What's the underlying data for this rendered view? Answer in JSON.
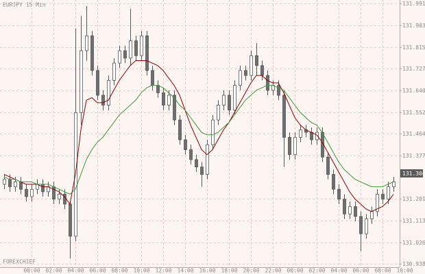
{
  "chart_data": {
    "type": "candlestick",
    "title": "EURJPY 15 Min",
    "watermark": "FOREXCHIEF",
    "grid": true,
    "up_color": "#ffffff",
    "down_color": "#6e6e6e",
    "wick_color": "#555555",
    "x": [
      -2.5,
      -2,
      -1.5,
      -1,
      -0.5,
      0,
      0.5,
      1,
      1.5,
      2,
      2.5,
      3,
      3.5,
      4,
      4.5,
      5,
      5.5,
      6,
      6.5,
      7,
      7.5,
      8,
      8.5,
      9,
      9.5,
      10,
      10.5,
      11,
      11.5,
      12,
      12.5,
      13,
      13.5,
      14,
      14.5,
      15,
      15.5,
      16,
      16.5,
      17,
      17.5,
      18,
      18.5,
      19,
      19.5,
      20,
      20.5,
      21,
      21.5,
      22,
      22.5,
      23,
      23.5,
      24,
      24.5,
      25,
      25.5,
      26,
      26.5,
      27,
      27.5,
      28,
      28.5,
      29,
      29.5,
      30,
      30.5,
      31,
      31.5,
      32,
      32.5,
      33
    ],
    "open": [
      131.26,
      131.28,
      131.25,
      131.27,
      131.24,
      131.21,
      131.24,
      131.26,
      131.23,
      131.25,
      131.2,
      131.22,
      131.18,
      131.05,
      131.55,
      131.8,
      131.86,
      131.72,
      131.62,
      131.58,
      131.68,
      131.75,
      131.8,
      131.77,
      131.84,
      131.78,
      131.86,
      131.72,
      131.66,
      131.63,
      131.58,
      131.62,
      131.52,
      131.44,
      131.4,
      131.36,
      131.33,
      131.3,
      131.42,
      131.52,
      131.58,
      131.62,
      131.56,
      131.66,
      131.72,
      131.7,
      131.78,
      131.74,
      131.7,
      131.64,
      131.66,
      131.62,
      131.45,
      131.38,
      131.45,
      131.48,
      131.47,
      131.44,
      131.47,
      131.37,
      131.3,
      131.24,
      131.2,
      131.14,
      131.17,
      131.13,
      131.06,
      131.12,
      131.15,
      131.22,
      131.2,
      131.25
    ],
    "high": [
      131.3,
      131.3,
      131.29,
      131.29,
      131.26,
      131.26,
      131.28,
      131.28,
      131.27,
      131.27,
      131.24,
      131.24,
      131.19,
      131.89,
      131.94,
      131.98,
      131.88,
      131.74,
      131.64,
      131.7,
      131.77,
      131.82,
      131.82,
      131.97,
      131.86,
      131.88,
      131.88,
      131.74,
      131.68,
      131.65,
      131.64,
      131.64,
      131.54,
      131.46,
      131.42,
      131.38,
      131.35,
      131.44,
      131.54,
      131.6,
      131.64,
      131.64,
      131.68,
      131.74,
      131.74,
      131.8,
      131.83,
      131.76,
      131.72,
      131.68,
      131.68,
      131.64,
      131.47,
      131.47,
      131.5,
      131.5,
      131.49,
      131.49,
      131.49,
      131.39,
      131.32,
      131.26,
      131.22,
      131.19,
      131.19,
      131.15,
      131.14,
      131.17,
      131.24,
      131.24,
      131.27,
      131.29
    ],
    "low": [
      131.24,
      131.23,
      131.23,
      131.22,
      131.19,
      131.19,
      131.22,
      131.21,
      131.21,
      131.18,
      131.18,
      131.16,
      130.96,
      131.03,
      131.5,
      131.76,
      131.7,
      131.6,
      131.56,
      131.56,
      131.66,
      131.73,
      131.75,
      131.74,
      131.76,
      131.76,
      131.7,
      131.64,
      131.61,
      131.56,
      131.56,
      131.5,
      131.42,
      131.38,
      131.34,
      131.31,
      131.25,
      131.28,
      131.4,
      131.5,
      131.56,
      131.54,
      131.54,
      131.64,
      131.68,
      131.68,
      131.7,
      131.68,
      131.62,
      131.62,
      131.6,
      131.33,
      131.36,
      131.36,
      131.43,
      131.45,
      131.42,
      131.42,
      131.35,
      131.28,
      131.22,
      131.18,
      131.12,
      131.12,
      131.11,
      130.99,
      131.04,
      131.1,
      131.13,
      131.18,
      131.18,
      131.23
    ],
    "close": [
      131.28,
      131.25,
      131.27,
      131.24,
      131.21,
      131.24,
      131.26,
      131.23,
      131.25,
      131.2,
      131.22,
      131.18,
      131.05,
      131.55,
      131.8,
      131.86,
      131.72,
      131.62,
      131.58,
      131.68,
      131.75,
      131.8,
      131.77,
      131.84,
      131.78,
      131.86,
      131.72,
      131.66,
      131.63,
      131.58,
      131.62,
      131.52,
      131.44,
      131.4,
      131.36,
      131.33,
      131.3,
      131.42,
      131.52,
      131.58,
      131.62,
      131.56,
      131.66,
      131.72,
      131.7,
      131.78,
      131.74,
      131.7,
      131.64,
      131.66,
      131.62,
      131.45,
      131.38,
      131.45,
      131.48,
      131.47,
      131.44,
      131.47,
      131.37,
      131.3,
      131.24,
      131.2,
      131.14,
      131.17,
      131.13,
      131.06,
      131.12,
      131.15,
      131.22,
      131.2,
      131.25,
      131.27
    ],
    "overlays": [
      {
        "color": "#8b0000",
        "values": [
          131.3,
          131.29,
          131.28,
          131.27,
          131.26,
          131.26,
          131.26,
          131.25,
          131.25,
          131.24,
          131.23,
          131.21,
          131.18,
          131.3,
          131.48,
          131.6,
          131.61,
          131.59,
          131.59,
          131.6,
          131.64,
          131.68,
          131.71,
          131.74,
          131.76,
          131.76,
          131.76,
          131.75,
          131.74,
          131.72,
          131.69,
          131.66,
          131.62,
          131.56,
          131.5,
          131.45,
          131.4,
          131.38,
          131.4,
          131.44,
          131.48,
          131.51,
          131.55,
          131.59,
          131.63,
          131.67,
          131.7,
          131.7,
          131.68,
          131.67,
          131.67,
          131.63,
          131.58,
          131.53,
          131.5,
          131.48,
          131.47,
          131.46,
          131.43,
          131.39,
          131.35,
          131.31,
          131.27,
          131.23,
          131.2,
          131.18,
          131.16,
          131.15,
          131.16,
          131.17,
          131.19,
          131.22
        ]
      },
      {
        "color": "#3a9a3a",
        "values": [
          131.29,
          131.28,
          131.28,
          131.27,
          131.27,
          131.27,
          131.26,
          131.26,
          131.26,
          131.25,
          131.24,
          131.23,
          131.22,
          131.24,
          131.3,
          131.36,
          131.4,
          131.43,
          131.45,
          131.48,
          131.51,
          131.54,
          131.56,
          131.58,
          131.6,
          131.63,
          131.65,
          131.66,
          131.66,
          131.65,
          131.63,
          131.61,
          131.58,
          131.56,
          131.53,
          131.5,
          131.47,
          131.46,
          131.46,
          131.47,
          131.49,
          131.51,
          131.54,
          131.57,
          131.6,
          131.62,
          131.64,
          131.65,
          131.66,
          131.66,
          131.65,
          131.64,
          131.61,
          131.58,
          131.55,
          131.53,
          131.51,
          131.5,
          131.47,
          131.43,
          131.39,
          131.35,
          131.32,
          131.3,
          131.28,
          131.27,
          131.26,
          131.25,
          131.25,
          131.25,
          131.26,
          131.27
        ]
      }
    ],
    "current_price": 131.304,
    "xlim": [
      -2.875,
      34.25
    ],
    "xticks": [
      {
        "value": 0,
        "label": "00:00"
      },
      {
        "value": 2,
        "label": "02:00"
      },
      {
        "value": 4,
        "label": "04:00"
      },
      {
        "value": 6,
        "label": "06:00"
      },
      {
        "value": 8,
        "label": "08:00"
      },
      {
        "value": 10,
        "label": "10:00"
      },
      {
        "value": 12,
        "label": "12:00"
      },
      {
        "value": 14,
        "label": "14:00"
      },
      {
        "value": 16,
        "label": "16:00"
      },
      {
        "value": 18,
        "label": "18:00"
      },
      {
        "value": 20,
        "label": "20:00"
      },
      {
        "value": 22,
        "label": "22:00"
      },
      {
        "value": 24,
        "label": "00:00"
      },
      {
        "value": 26,
        "label": "02:00"
      },
      {
        "value": 28,
        "label": "04:00"
      },
      {
        "value": 30,
        "label": "06:00"
      },
      {
        "value": 32,
        "label": "08:00"
      },
      {
        "value": 34,
        "label": "10:00"
      }
    ],
    "ylim": [
      130.925,
      132.005
    ],
    "yticks": [
      131.991,
      131.903,
      131.815,
      131.727,
      {
        "value": 131.64,
        "label": "131.640"
      },
      131.552,
      131.464,
      131.377,
      131.201,
      131.113,
      131.026,
      130.938
    ]
  }
}
